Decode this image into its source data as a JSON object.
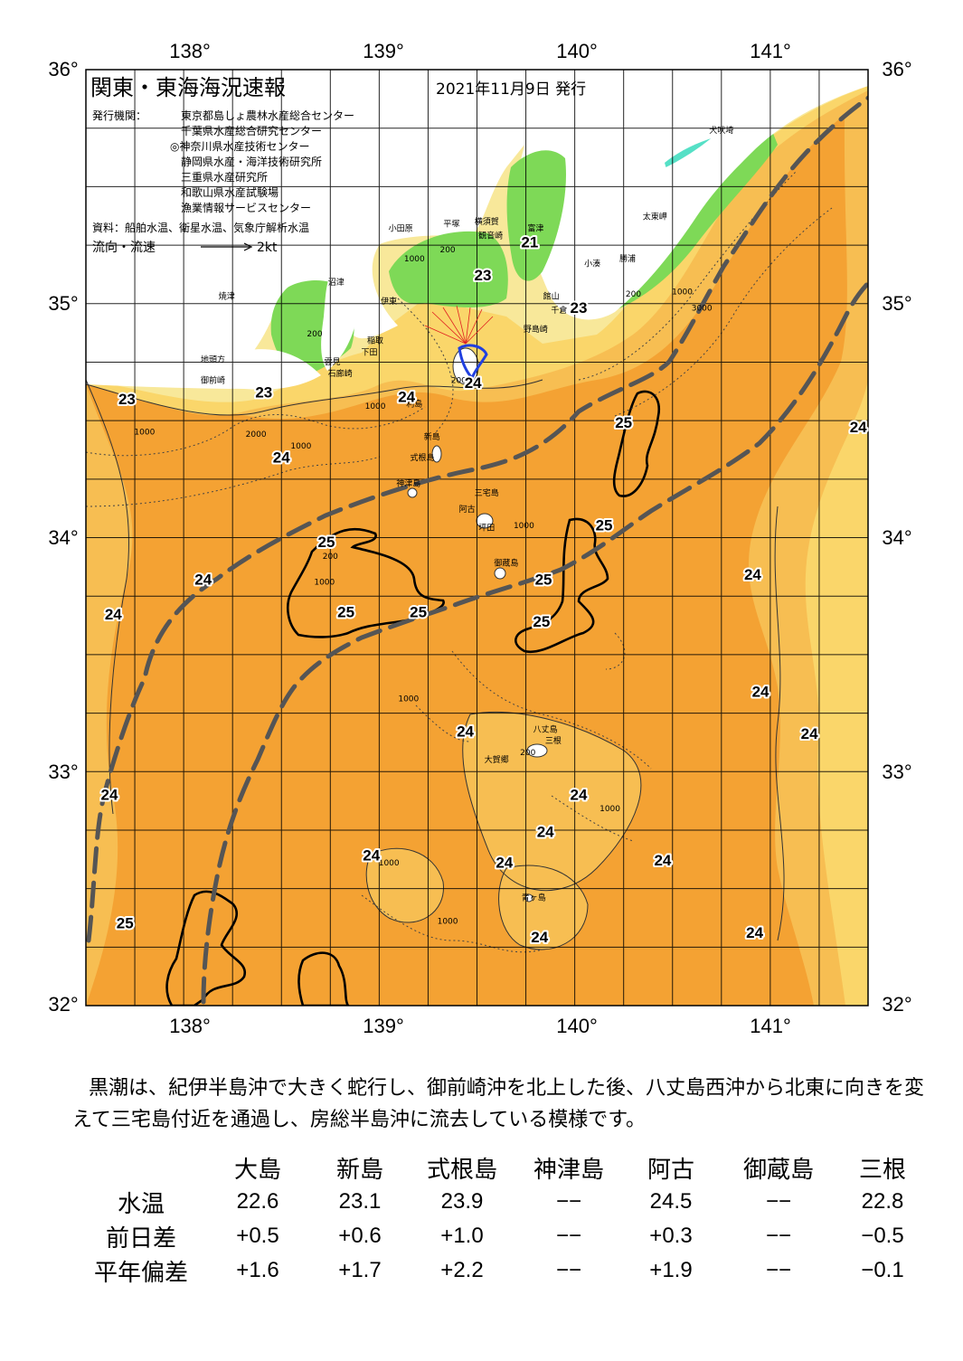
{
  "title": "関東・東海海況速報",
  "date": "2021年11月9日 発行",
  "publisher_label": "発行機関：",
  "publishers": [
    "東京都島しょ農林水産総合センター",
    "千葉県水産総合研究センター",
    "◎神奈川県水産技術センター",
    "静岡県水産・海洋技術研究所",
    "三重県水産研究所",
    "和歌山県水産試験場",
    "漁業情報サービスセンター"
  ],
  "sources": "資料：船舶水温、衛星水温、気象庁解析水温",
  "flow_legend": {
    "label": "流向・流速",
    "unit": "2kt"
  },
  "map": {
    "lon_labels": [
      "138°",
      "139°",
      "140°",
      "141°"
    ],
    "lat_labels": [
      "36°",
      "35°",
      "34°",
      "33°",
      "32°"
    ],
    "lon_range": [
      137.5,
      141.5
    ],
    "lat_range": [
      32,
      36
    ],
    "colors": {
      "sea_warm": "#f4a233",
      "sea_mid": "#f7be52",
      "sea_cool": "#fad66a",
      "coast": "#f8e89a",
      "land": "#ffffff",
      "land_green": "#7ed957",
      "land_teal": "#55e0c6",
      "kuroshio": "#555555"
    },
    "isotherm_labels": [
      {
        "t": "23",
        "lon": 137.71,
        "lat": 34.57
      },
      {
        "t": "23",
        "lon": 138.41,
        "lat": 34.6
      },
      {
        "t": "24",
        "lon": 138.5,
        "lat": 34.32
      },
      {
        "t": "25",
        "lon": 138.73,
        "lat": 33.96
      },
      {
        "t": "24",
        "lon": 138.1,
        "lat": 33.8
      },
      {
        "t": "24",
        "lon": 137.64,
        "lat": 33.65
      },
      {
        "t": "25",
        "lon": 138.83,
        "lat": 33.66
      },
      {
        "t": "25",
        "lon": 139.2,
        "lat": 33.66
      },
      {
        "t": "24",
        "lon": 139.14,
        "lat": 34.58
      },
      {
        "t": "23",
        "lon": 139.53,
        "lat": 35.1
      },
      {
        "t": "23",
        "lon": 140.02,
        "lat": 34.96
      },
      {
        "t": "24",
        "lon": 139.48,
        "lat": 34.64
      },
      {
        "t": "25",
        "lon": 140.25,
        "lat": 34.47
      },
      {
        "t": "25",
        "lon": 140.15,
        "lat": 34.03
      },
      {
        "t": "25",
        "lon": 139.84,
        "lat": 33.8
      },
      {
        "t": "25",
        "lon": 139.83,
        "lat": 33.62
      },
      {
        "t": "24",
        "lon": 140.91,
        "lat": 33.82
      },
      {
        "t": "24",
        "lon": 141.45,
        "lat": 34.45
      },
      {
        "t": "24",
        "lon": 140.95,
        "lat": 33.32
      },
      {
        "t": "24",
        "lon": 141.2,
        "lat": 33.14
      },
      {
        "t": "24",
        "lon": 139.44,
        "lat": 33.15
      },
      {
        "t": "24",
        "lon": 140.02,
        "lat": 32.88
      },
      {
        "t": "24",
        "lon": 139.85,
        "lat": 32.72
      },
      {
        "t": "24",
        "lon": 140.45,
        "lat": 32.6
      },
      {
        "t": "24",
        "lon": 138.96,
        "lat": 32.62
      },
      {
        "t": "24",
        "lon": 139.64,
        "lat": 32.59
      },
      {
        "t": "24",
        "lon": 137.62,
        "lat": 32.88
      },
      {
        "t": "25",
        "lon": 137.7,
        "lat": 32.33
      },
      {
        "t": "24",
        "lon": 139.82,
        "lat": 32.27
      },
      {
        "t": "24",
        "lon": 140.92,
        "lat": 32.29
      },
      {
        "t": "21",
        "lon": 139.77,
        "lat": 35.24
      }
    ],
    "places": [
      {
        "t": "犬吠埼",
        "lon": 140.75,
        "lat": 35.73
      },
      {
        "t": "太東岬",
        "lon": 140.41,
        "lat": 35.36
      },
      {
        "t": "勝浦",
        "lon": 140.27,
        "lat": 35.18
      },
      {
        "t": "小湊",
        "lon": 140.09,
        "lat": 35.16
      },
      {
        "t": "富津",
        "lon": 139.8,
        "lat": 35.31
      },
      {
        "t": "横須賀",
        "lon": 139.55,
        "lat": 35.34
      },
      {
        "t": "観音崎",
        "lon": 139.57,
        "lat": 35.28
      },
      {
        "t": "平塚",
        "lon": 139.37,
        "lat": 35.33
      },
      {
        "t": "小田原",
        "lon": 139.11,
        "lat": 35.31
      },
      {
        "t": "館山",
        "lon": 139.88,
        "lat": 35.02
      },
      {
        "t": "千倉",
        "lon": 139.92,
        "lat": 34.96
      },
      {
        "t": "野島崎",
        "lon": 139.8,
        "lat": 34.88
      },
      {
        "t": "沼津",
        "lon": 138.78,
        "lat": 35.08
      },
      {
        "t": "伊東",
        "lon": 139.05,
        "lat": 35.0
      },
      {
        "t": "焼津",
        "lon": 138.22,
        "lat": 35.02
      },
      {
        "t": "稲取",
        "lon": 138.98,
        "lat": 34.83
      },
      {
        "t": "下田",
        "lon": 138.95,
        "lat": 34.78
      },
      {
        "t": "雲見",
        "lon": 138.76,
        "lat": 34.74
      },
      {
        "t": "石廊崎",
        "lon": 138.8,
        "lat": 34.69
      },
      {
        "t": "地頭方",
        "lon": 138.15,
        "lat": 34.75
      },
      {
        "t": "御前崎",
        "lon": 138.15,
        "lat": 34.66
      },
      {
        "t": "利島",
        "lon": 139.18,
        "lat": 34.56
      },
      {
        "t": "新島",
        "lon": 139.27,
        "lat": 34.42
      },
      {
        "t": "式根島",
        "lon": 139.22,
        "lat": 34.33
      },
      {
        "t": "神津島",
        "lon": 139.15,
        "lat": 34.22
      },
      {
        "t": "三宅島",
        "lon": 139.55,
        "lat": 34.18
      },
      {
        "t": "阿古",
        "lon": 139.45,
        "lat": 34.11
      },
      {
        "t": "坪田",
        "lon": 139.55,
        "lat": 34.03
      },
      {
        "t": "御蔵島",
        "lon": 139.65,
        "lat": 33.88
      },
      {
        "t": "八丈島",
        "lon": 139.85,
        "lat": 33.17
      },
      {
        "t": "三根",
        "lon": 139.89,
        "lat": 33.12
      },
      {
        "t": "大賀郷",
        "lon": 139.6,
        "lat": 33.04
      },
      {
        "t": "青ヶ島",
        "lon": 139.79,
        "lat": 32.45
      }
    ],
    "depths": [
      {
        "t": "1000",
        "lon": 137.8,
        "lat": 34.44
      },
      {
        "t": "2000",
        "lon": 138.37,
        "lat": 34.43
      },
      {
        "t": "1000",
        "lon": 138.6,
        "lat": 34.38
      },
      {
        "t": "200",
        "lon": 138.67,
        "lat": 34.86
      },
      {
        "t": "1000",
        "lon": 138.98,
        "lat": 34.55
      },
      {
        "t": "200",
        "lon": 139.35,
        "lat": 35.22
      },
      {
        "t": "1000",
        "lon": 139.18,
        "lat": 35.18
      },
      {
        "t": "2000",
        "lon": 139.42,
        "lat": 34.66
      },
      {
        "t": "200",
        "lon": 140.3,
        "lat": 35.03
      },
      {
        "t": "1000",
        "lon": 140.55,
        "lat": 35.04
      },
      {
        "t": "3000",
        "lon": 140.65,
        "lat": 34.97
      },
      {
        "t": "200",
        "lon": 138.75,
        "lat": 33.91
      },
      {
        "t": "1000",
        "lon": 138.72,
        "lat": 33.8
      },
      {
        "t": "1000",
        "lon": 139.74,
        "lat": 34.04
      },
      {
        "t": "1000",
        "lon": 139.15,
        "lat": 33.3
      },
      {
        "t": "200",
        "lon": 139.76,
        "lat": 33.07
      },
      {
        "t": "1000",
        "lon": 140.18,
        "lat": 32.83
      },
      {
        "t": "1000",
        "lon": 139.05,
        "lat": 32.6
      },
      {
        "t": "1000",
        "lon": 139.35,
        "lat": 32.35
      }
    ]
  },
  "summary": "黒潮は、紀伊半島沖で大きく蛇行し、御前崎沖を北上した後、八丈島西沖から北東に向きを変えて三宅島付近を通過し、房総半島沖に流去している模様です。",
  "table": {
    "headers": [
      "大島",
      "新島",
      "式根島",
      "神津島",
      "阿古",
      "御蔵島",
      "三根"
    ],
    "rows": [
      {
        "label": "水温",
        "values": [
          "22.6",
          "23.1",
          "23.9",
          "−−",
          "24.5",
          "−−",
          "22.8"
        ]
      },
      {
        "label": "前日差",
        "values": [
          "+0.5",
          "+0.6",
          "+1.0",
          "−−",
          "+0.3",
          "−−",
          "−0.5"
        ]
      },
      {
        "label": "平年偏差",
        "values": [
          "+1.6",
          "+1.7",
          "+2.2",
          "−−",
          "+1.9",
          "−−",
          "−0.1"
        ]
      }
    ]
  }
}
